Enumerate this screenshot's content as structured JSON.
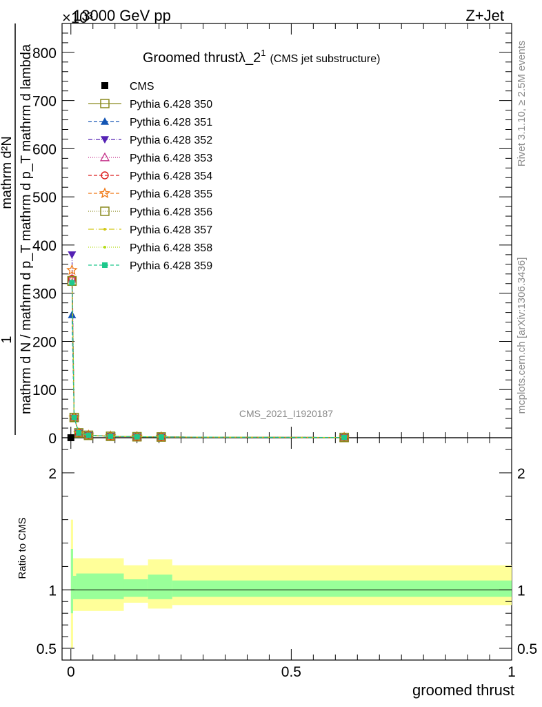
{
  "header": {
    "left": "13000 GeV pp",
    "right": "Z+Jet",
    "exponent": "×10³"
  },
  "side": {
    "rivet": "Rivet 3.1.10, ≥ 2.5M events",
    "mcplots": "mcplots.cern.ch [arXiv:1306.3436]"
  },
  "chart_data": [
    {
      "type": "line",
      "title": "Groomed thrustλ_2",
      "title_sup": "1",
      "title_suffix": "(CMS jet substructure)",
      "watermark": "CMS_2021_I1920187",
      "ylabel_top": "mathrm d²N",
      "ylabel_bottom": "mathrm d N / mathrm d p_T mathrm d p_T mathrm d lambda",
      "ylabel_factor": "1",
      "ylim": [
        0,
        860
      ],
      "y_unit_scale": 1000,
      "yticks": [
        0,
        100,
        200,
        300,
        400,
        500,
        600,
        700,
        800
      ],
      "xlim": [
        -0.02,
        1.0
      ],
      "legend_position": "top-left",
      "reference": {
        "name": "CMS",
        "x": [
          0.0
        ],
        "y": [
          0
        ]
      },
      "series": [
        {
          "name": "Pythia 6.428 350",
          "color": "#8a8a1e",
          "marker": "open-square",
          "dash": "",
          "x": [
            0.0025,
            0.0075,
            0.018,
            0.04,
            0.09,
            0.15,
            0.205,
            0.62
          ],
          "y": [
            325,
            42,
            10,
            5,
            3,
            2,
            1.5,
            0.5
          ]
        },
        {
          "name": "Pythia 6.428 351",
          "color": "#1455b4",
          "marker": "filled-triangle-up",
          "dash": "5,3",
          "x": [
            0.0025,
            0.0075,
            0.018,
            0.04,
            0.09,
            0.15,
            0.205,
            0.62
          ],
          "y": [
            255,
            40,
            11,
            5,
            3,
            2,
            1.5,
            0.5
          ]
        },
        {
          "name": "Pythia 6.428 352",
          "color": "#5522b4",
          "marker": "filled-triangle-down",
          "dash": "6,2,1,2",
          "x": [
            0.0025,
            0.0075,
            0.018,
            0.04,
            0.09,
            0.15,
            0.205,
            0.62
          ],
          "y": [
            380,
            41,
            10,
            5,
            3,
            2,
            1.5,
            0.5
          ]
        },
        {
          "name": "Pythia 6.428 353",
          "color": "#c4328a",
          "marker": "open-triangle-up",
          "dash": "1,2",
          "x": [
            0.0025,
            0.0075,
            0.018,
            0.04,
            0.09,
            0.15,
            0.205,
            0.62
          ],
          "y": [
            330,
            42,
            10,
            5,
            3,
            2,
            1.5,
            0.5
          ]
        },
        {
          "name": "Pythia 6.428 354",
          "color": "#dc1e1e",
          "marker": "open-circle",
          "dash": "5,3",
          "x": [
            0.0025,
            0.0075,
            0.018,
            0.04,
            0.09,
            0.15,
            0.205,
            0.62
          ],
          "y": [
            330,
            42,
            10,
            5,
            3,
            2,
            1.5,
            0.5
          ]
        },
        {
          "name": "Pythia 6.428 355",
          "color": "#f07814",
          "marker": "open-star",
          "dash": "5,3",
          "x": [
            0.0025,
            0.0075,
            0.018,
            0.04,
            0.09,
            0.15,
            0.205,
            0.62
          ],
          "y": [
            348,
            42,
            10,
            5,
            3,
            2,
            1.5,
            0.5
          ]
        },
        {
          "name": "Pythia 6.428 356",
          "color": "#8a8a1e",
          "marker": "open-square",
          "dash": "1,2",
          "x": [
            0.0025,
            0.0075,
            0.018,
            0.04,
            0.09,
            0.15,
            0.205,
            0.62
          ],
          "y": [
            326,
            42,
            10,
            5,
            3,
            2,
            1.5,
            0.5
          ]
        },
        {
          "name": "Pythia 6.428 357",
          "color": "#d2c814",
          "marker": "small-dot",
          "dash": "8,3,1,3",
          "x": [
            0.0025,
            0.0075,
            0.018,
            0.04,
            0.09,
            0.15,
            0.205,
            0.62
          ],
          "y": [
            324,
            42,
            10,
            5,
            3,
            2,
            1.5,
            0.5
          ]
        },
        {
          "name": "Pythia 6.428 358",
          "color": "#b4dc14",
          "marker": "small-dot",
          "dash": "1,2",
          "x": [
            0.0025,
            0.0075,
            0.018,
            0.04,
            0.09,
            0.15,
            0.205,
            0.62
          ],
          "y": [
            324,
            42,
            10,
            5,
            3,
            2,
            1.5,
            0.5
          ]
        },
        {
          "name": "Pythia 6.428 359",
          "color": "#1ec88c",
          "marker": "filled-square",
          "dash": "5,3",
          "x": [
            0.0025,
            0.0075,
            0.018,
            0.04,
            0.09,
            0.15,
            0.205,
            0.62
          ],
          "y": [
            322,
            42,
            10,
            5,
            3,
            2,
            1.5,
            0.5
          ]
        }
      ]
    },
    {
      "type": "area",
      "ylabel": "Ratio to CMS",
      "xlabel": "groomed thrust",
      "xlim": [
        -0.02,
        1.0
      ],
      "ylim": [
        0.4,
        2.3
      ],
      "yticks": [
        0.5,
        1,
        2
      ],
      "xticks": [
        0,
        0.5,
        1
      ],
      "xtick_labels": [
        "0",
        "0.5",
        "1"
      ],
      "reference_line": 1,
      "band_colors": {
        "outer": "#ffff99",
        "inner": "#99ff99"
      },
      "bands": [
        {
          "x0": 0.0,
          "x1": 0.005,
          "outer_low": 0.5,
          "outer_high": 1.6,
          "inner_low": 0.8,
          "inner_high": 1.35
        },
        {
          "x0": 0.005,
          "x1": 0.012,
          "outer_low": 0.82,
          "outer_high": 1.27,
          "inner_low": 0.92,
          "inner_high": 1.12
        },
        {
          "x0": 0.012,
          "x1": 0.12,
          "outer_low": 0.82,
          "outer_high": 1.27,
          "inner_low": 0.92,
          "inner_high": 1.14
        },
        {
          "x0": 0.12,
          "x1": 0.175,
          "outer_low": 0.89,
          "outer_high": 1.21,
          "inner_low": 0.94,
          "inner_high": 1.09
        },
        {
          "x0": 0.175,
          "x1": 0.23,
          "outer_low": 0.84,
          "outer_high": 1.26,
          "inner_low": 0.92,
          "inner_high": 1.13
        },
        {
          "x0": 0.23,
          "x1": 1.0,
          "outer_low": 0.87,
          "outer_high": 1.21,
          "inner_low": 0.94,
          "inner_high": 1.08
        }
      ]
    }
  ]
}
